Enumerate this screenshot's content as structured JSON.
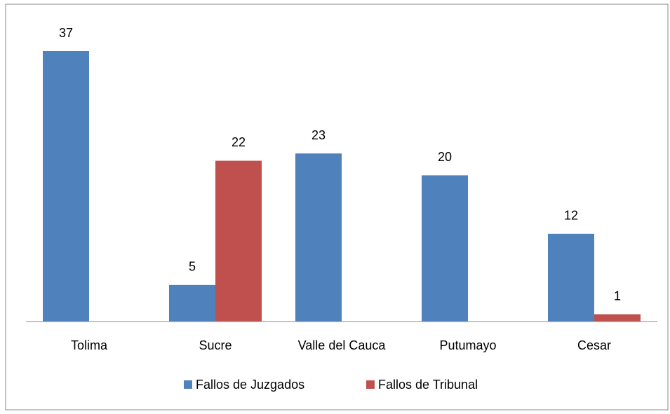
{
  "chart_data": {
    "type": "bar",
    "categories": [
      "Tolima",
      "Sucre",
      "Valle del Cauca",
      "Putumayo",
      "Cesar"
    ],
    "series": [
      {
        "name": "Fallos de Juzgados",
        "color": "#4f81bd",
        "values": [
          37,
          5,
          23,
          20,
          12
        ]
      },
      {
        "name": "Fallos de Tribunal",
        "color": "#c0504d",
        "values": [
          null,
          22,
          null,
          null,
          1
        ]
      }
    ],
    "legend": "bottom"
  }
}
